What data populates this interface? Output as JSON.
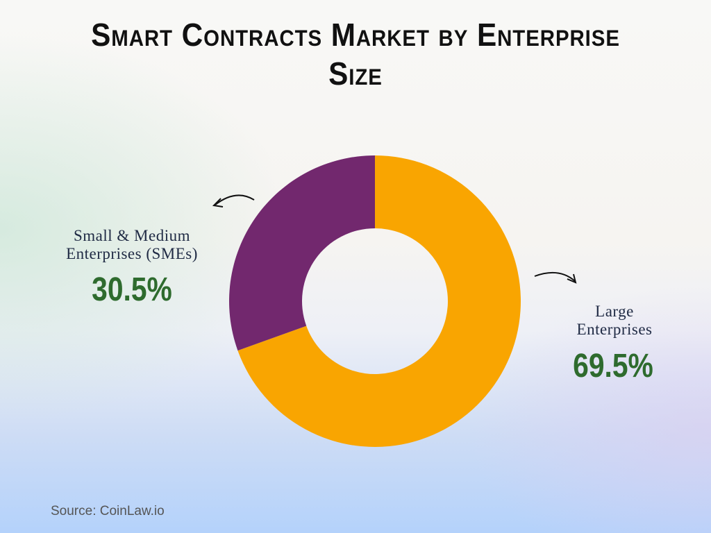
{
  "chart_data": {
    "type": "pie",
    "variant": "donut",
    "title_lines": [
      "Smart Contracts Market by Enterprise",
      "Size"
    ],
    "categories": [
      "Large Enterprises",
      "Small & Medium Enterprises (SMEs)"
    ],
    "values": [
      69.5,
      30.5
    ],
    "value_labels": [
      "69.5%",
      "30.5%"
    ],
    "label_lines": {
      "large": [
        "Large",
        "Enterprises"
      ],
      "sme": [
        "Small & Medium",
        "Enterprises (SMEs)"
      ]
    },
    "colors": [
      "#f9a501",
      "#72286e"
    ],
    "label_color": "#1f2a44",
    "value_color": "#2e6b2e"
  },
  "source": "Source: CoinLaw.io"
}
